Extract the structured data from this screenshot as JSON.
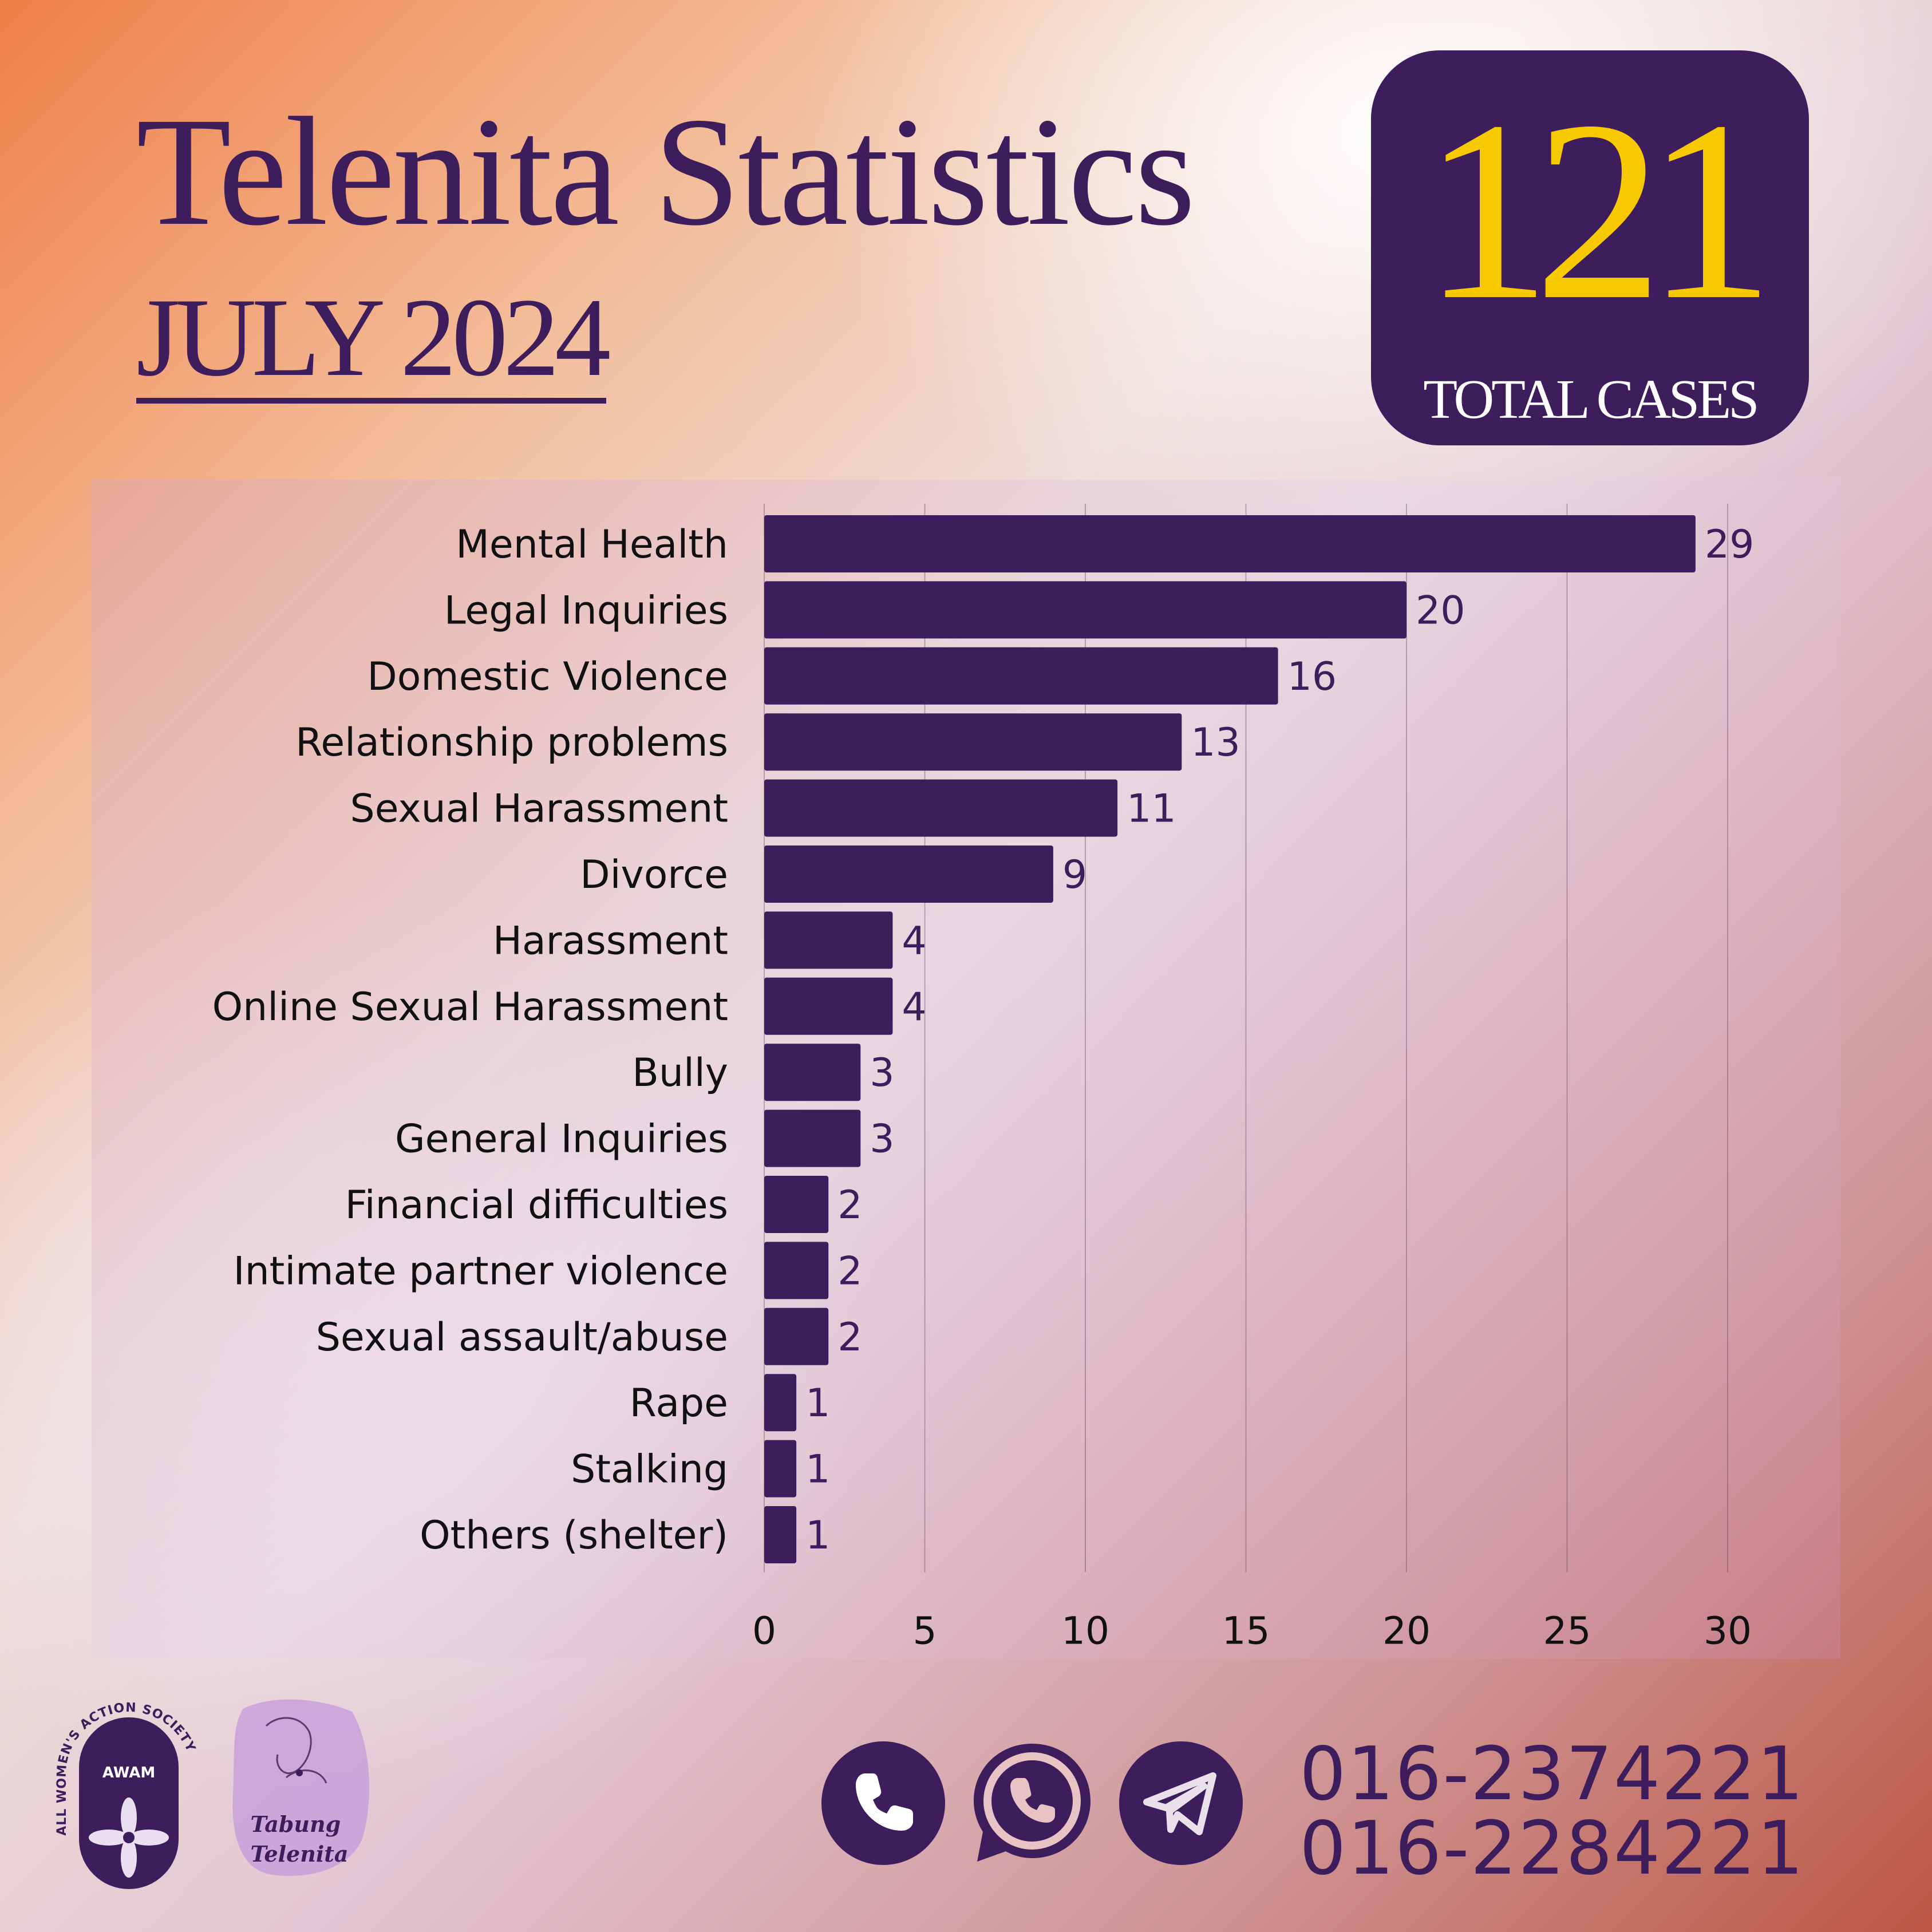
{
  "header": {
    "title": "Telenita Statistics",
    "subtitle": "JULY 2024"
  },
  "total": {
    "number": "121",
    "label": "TOTAL CASES"
  },
  "colors": {
    "primary": "#3e1d5c",
    "accent_yellow": "#f7c900",
    "gradient_orange": "#ef7e46",
    "gradient_rust": "#bb5743"
  },
  "chart_data": {
    "type": "bar",
    "orientation": "horizontal",
    "categories": [
      "Mental Health",
      "Legal Inquiries",
      "Domestic Violence",
      "Relationship problems",
      "Sexual Harassment",
      "Divorce",
      "Harassment",
      "Online Sexual Harassment",
      "Bully",
      "General Inquiries",
      "Financial difficulties",
      "Intimate partner violence",
      "Sexual assault/abuse",
      "Rape",
      "Stalking",
      "Others (shelter)"
    ],
    "values": [
      29,
      20,
      16,
      13,
      11,
      9,
      4,
      4,
      3,
      3,
      2,
      2,
      2,
      1,
      1,
      1
    ],
    "xlim": [
      0,
      30
    ],
    "xticks": [
      0,
      5,
      10,
      15,
      20,
      25,
      30
    ],
    "grid": true,
    "data_labels": true,
    "bar_color": "#3e1d5c"
  },
  "logos": {
    "awam_text": "AWAM",
    "awam_ring_text": "ALL WOMEN'S ACTION SOCIETY",
    "tabung_text": "Tabung Telenita"
  },
  "contact": {
    "icons": [
      "phone-icon",
      "whatsapp-icon",
      "telegram-icon"
    ],
    "phones": [
      "016-2374221",
      "016-2284221"
    ]
  }
}
